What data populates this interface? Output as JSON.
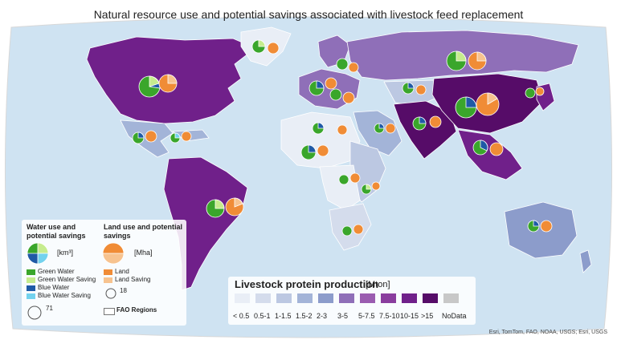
{
  "title": "Natural resource use and potential savings associated with livestock feed replacement",
  "legend_water": {
    "heading": "Water use and potential savings",
    "unit": "[km³]",
    "items": [
      {
        "label": "Green Water",
        "color": "#3aa62b"
      },
      {
        "label": "Green Water Saving",
        "color": "#c6ec8e"
      },
      {
        "label": "Blue Water",
        "color": "#1f5aa6"
      },
      {
        "label": "Blue Water Saving",
        "color": "#73d2ee"
      }
    ],
    "size_ref": "71",
    "regions_label": "FAO Regions"
  },
  "legend_land": {
    "heading": "Land use and potential savings",
    "unit": "[Mha]",
    "items": [
      {
        "label": "Land",
        "color": "#f08c36"
      },
      {
        "label": "Land Saving",
        "color": "#f7c38f"
      }
    ],
    "size_ref": "18"
  },
  "production_scale": {
    "title": "Livestock protein production",
    "unit": "[Mton]",
    "classes": [
      {
        "label": "< 0.5",
        "color": "#e9eef6"
      },
      {
        "label": "0.5-1",
        "color": "#d4dcec"
      },
      {
        "label": "1-1.5",
        "color": "#bcc8e2"
      },
      {
        "label": "1.5-2",
        "color": "#a3b4d8"
      },
      {
        "label": "2-3",
        "color": "#8c9ccb"
      },
      {
        "label": "3-5",
        "color": "#8f6fb8"
      },
      {
        "label": "5-7.5",
        "color": "#9a5cb0"
      },
      {
        "label": "7.5-10",
        "color": "#8a3d9e"
      },
      {
        "label": "10-15",
        "color": "#70208a"
      },
      {
        "label": ">15",
        "color": "#560c68"
      },
      {
        "label": "NoData",
        "color": "#c8c8c8"
      }
    ]
  },
  "credit": "Esri, TomTom, FAO, NOAA, USGS; Esri, USGS"
}
